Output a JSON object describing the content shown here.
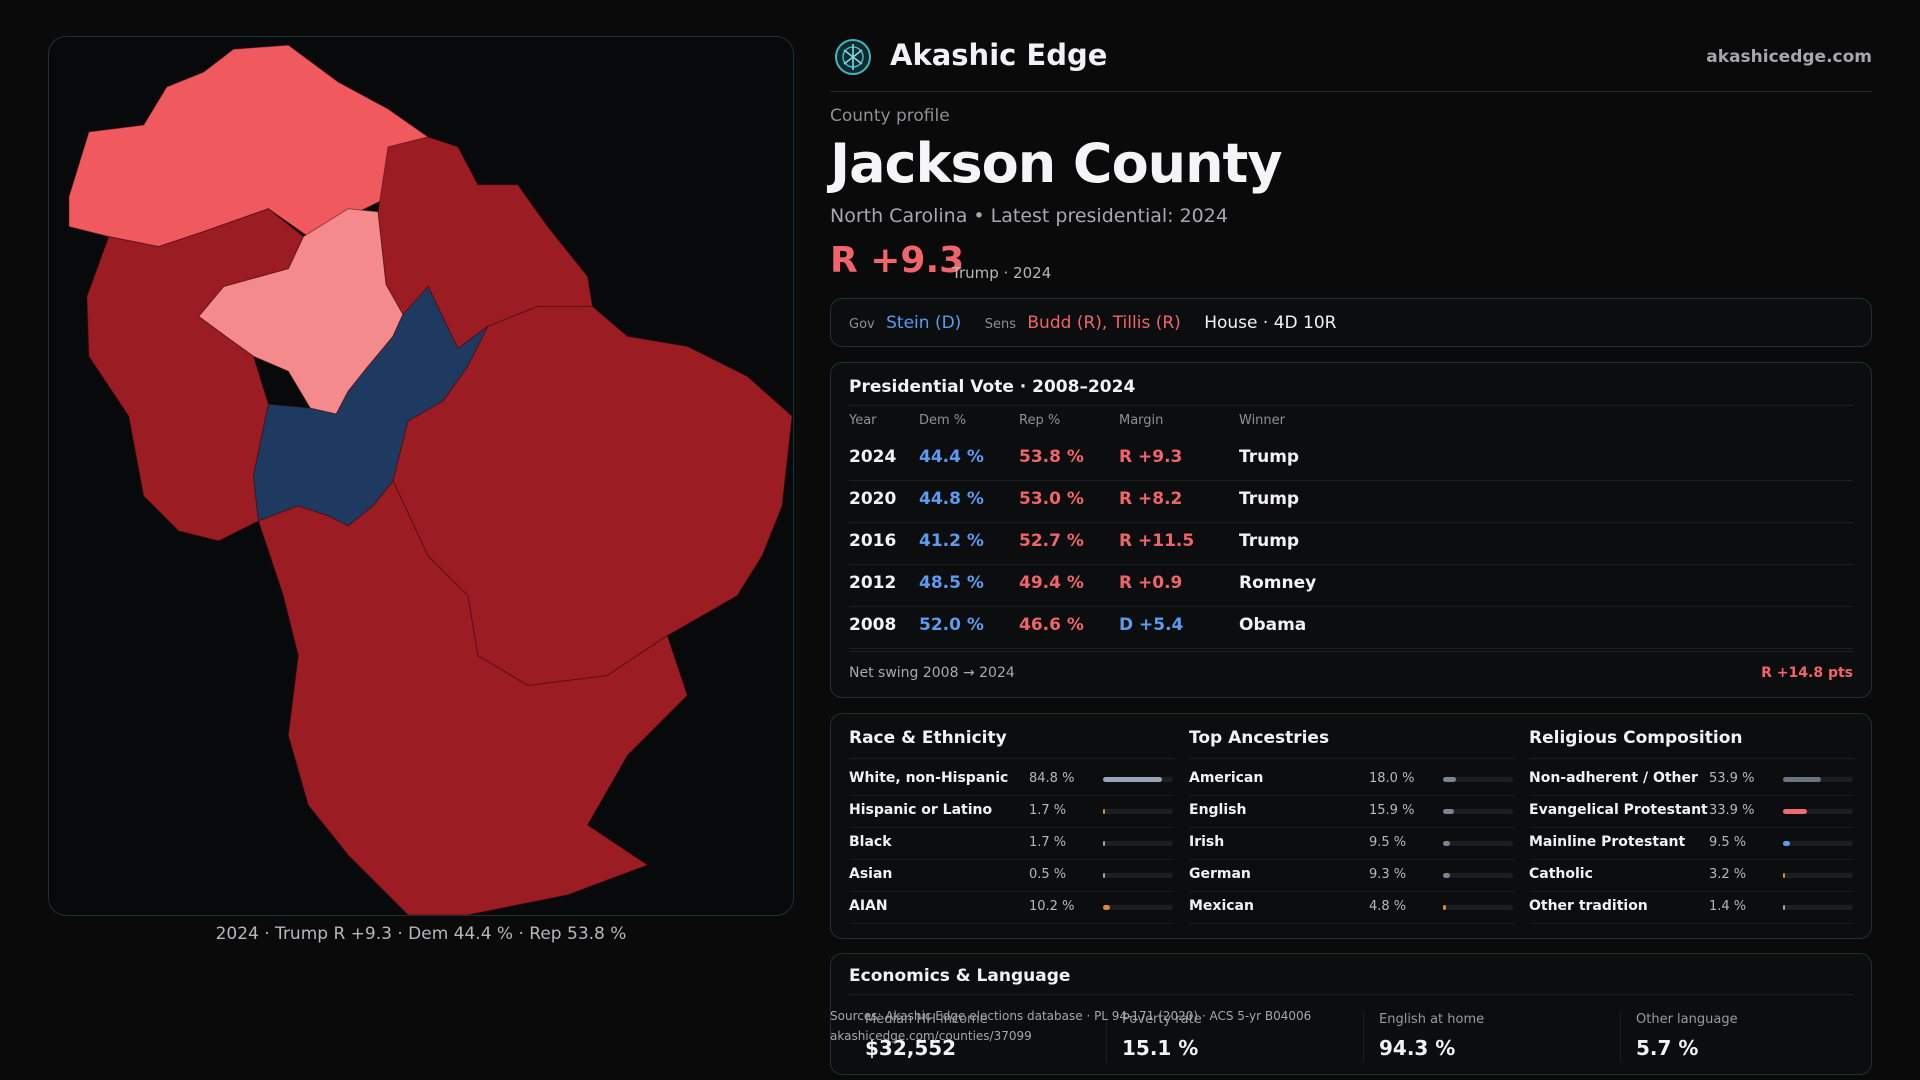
{
  "brand": {
    "name": "Akashic Edge",
    "site": "akashicedge.com"
  },
  "profile": {
    "kicker": "County profile",
    "county": "Jackson County",
    "subline": "North Carolina • Latest presidential: 2024",
    "margin": "R +9.3",
    "margin_note": "Trump · 2024"
  },
  "officials": {
    "gov_label": "Gov",
    "gov": "Stein (D)",
    "sens_label": "Sens",
    "sens": "Budd (R), Tillis (R)",
    "house": "House · 4D 10R"
  },
  "presidential": {
    "title": "Presidential Vote · 2008–2024",
    "headers": [
      "Year",
      "Dem %",
      "Rep %",
      "Margin",
      "Winner"
    ],
    "rows": [
      {
        "year": "2024",
        "dem": "44.4 %",
        "rep": "53.8 %",
        "margin": "R +9.3",
        "winner": "Trump",
        "party": "R"
      },
      {
        "year": "2020",
        "dem": "44.8 %",
        "rep": "53.0 %",
        "margin": "R +8.2",
        "winner": "Trump",
        "party": "R"
      },
      {
        "year": "2016",
        "dem": "41.2 %",
        "rep": "52.7 %",
        "margin": "R +11.5",
        "winner": "Trump",
        "party": "R"
      },
      {
        "year": "2012",
        "dem": "48.5 %",
        "rep": "49.4 %",
        "margin": "R +0.9",
        "winner": "Romney",
        "party": "R"
      },
      {
        "year": "2008",
        "dem": "52.0 %",
        "rep": "46.6 %",
        "margin": "D +5.4",
        "winner": "Obama",
        "party": "D"
      }
    ],
    "net_label": "Net swing 2008 → 2024",
    "net_value": "R +14.8 pts"
  },
  "demographics": [
    {
      "title": "Race & Ethnicity",
      "items": [
        {
          "label": "White, non-Hispanic",
          "pct": "84.8 %",
          "value": 0.848,
          "color": "#9aa4b4"
        },
        {
          "label": "Hispanic or Latino",
          "pct": "1.7 %",
          "value": 0.017,
          "color": "#d98a2b"
        },
        {
          "label": "Black",
          "pct": "1.7 %",
          "value": 0.017,
          "color": "#9aa4b4"
        },
        {
          "label": "Asian",
          "pct": "0.5 %",
          "value": 0.005,
          "color": "#9aa4b4"
        },
        {
          "label": "AIAN",
          "pct": "10.2 %",
          "value": 0.102,
          "color": "#d98a2b"
        }
      ]
    },
    {
      "title": "Top Ancestries",
      "items": [
        {
          "label": "American",
          "pct": "18.0 %",
          "value": 0.18,
          "color": "#7b8494"
        },
        {
          "label": "English",
          "pct": "15.9 %",
          "value": 0.159,
          "color": "#7b8494"
        },
        {
          "label": "Irish",
          "pct": "9.5 %",
          "value": 0.095,
          "color": "#7b8494"
        },
        {
          "label": "German",
          "pct": "9.3 %",
          "value": 0.093,
          "color": "#7b8494"
        },
        {
          "label": "Mexican",
          "pct": "4.8 %",
          "value": 0.048,
          "color": "#d98a2b"
        }
      ]
    },
    {
      "title": "Religious Composition",
      "items": [
        {
          "label": "Non-adherent / Other",
          "pct": "53.9 %",
          "value": 0.539,
          "color": "#6b7380"
        },
        {
          "label": "Evangelical Protestant",
          "pct": "33.9 %",
          "value": 0.339,
          "color": "#ee6b70"
        },
        {
          "label": "Mainline Protestant",
          "pct": "9.5 %",
          "value": 0.095,
          "color": "#5b9bf0"
        },
        {
          "label": "Catholic",
          "pct": "3.2 %",
          "value": 0.032,
          "color": "#d98a2b"
        },
        {
          "label": "Other tradition",
          "pct": "1.4 %",
          "value": 0.014,
          "color": "#9aa4b4"
        }
      ]
    }
  ],
  "economics": {
    "title": "Economics & Language",
    "stats": [
      {
        "label": "Median HH income",
        "value": "$32,552"
      },
      {
        "label": "Poverty rate",
        "value": "15.1 %"
      },
      {
        "label": "English at home",
        "value": "94.3 %"
      },
      {
        "label": "Other language",
        "value": "5.7 %"
      }
    ]
  },
  "sources": {
    "line1": "Sources: Akashic Edge elections database · PL 94-171 (2020) · ACS 5-yr B04006",
    "line2": "akashicedge.com/counties/37099"
  },
  "map": {
    "caption": "2024 · Trump R +9.3 · Dem 44.4 % · Rep 53.8 %",
    "colors": {
      "strong_rep": "#9b1c22",
      "mid_rep": "#f05a5f",
      "light_rep": "#f58a8c",
      "dem": "#1e3a60"
    }
  }
}
